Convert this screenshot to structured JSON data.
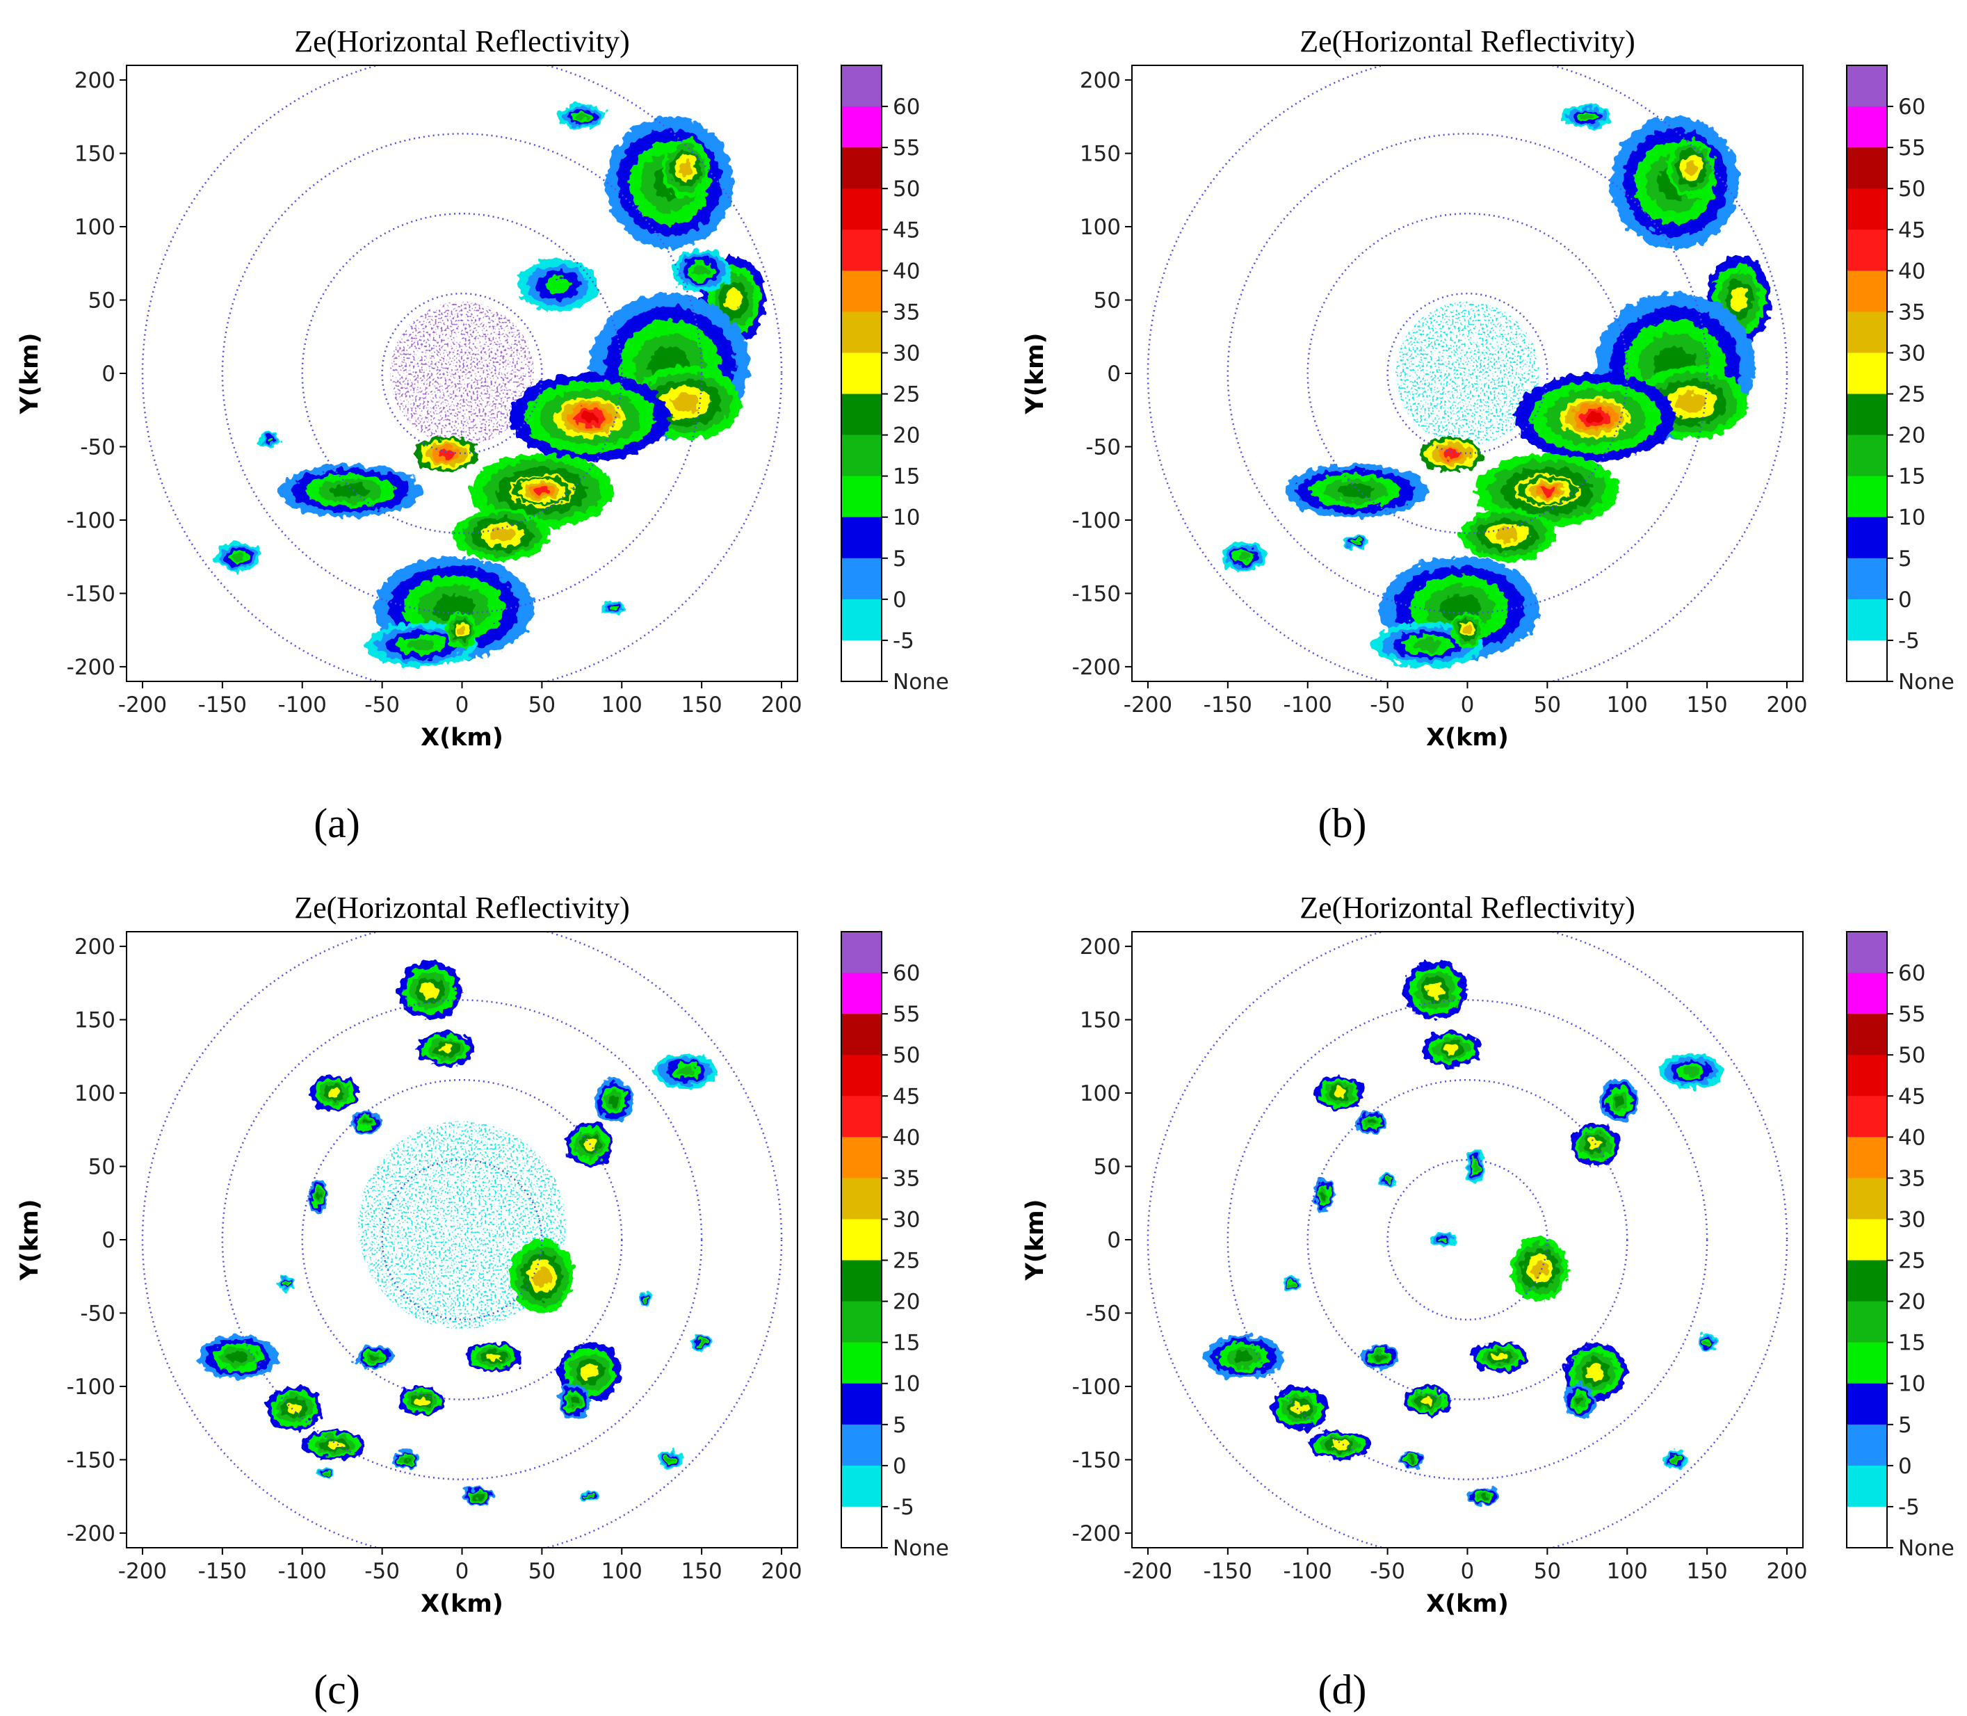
{
  "chart_data": [
    {
      "type": "heatmap",
      "caption": "(a)",
      "title": "Ze(Horizontal Reflectivity)",
      "xlabel": "X(km)",
      "ylabel": "Y(km)",
      "xlim": [
        -210,
        210
      ],
      "ylim": [
        -210,
        210
      ],
      "xticks": [
        -200,
        -150,
        -100,
        -50,
        0,
        50,
        100,
        150,
        200
      ],
      "yticks": [
        200,
        150,
        100,
        50,
        0,
        -50,
        -100,
        -150,
        -200
      ],
      "range_rings_km": [
        50,
        100,
        150,
        200
      ],
      "echo_cells": [
        {
          "x": 130,
          "y": 130,
          "rx": 40,
          "ry": 45,
          "level": 20
        },
        {
          "x": 140,
          "y": 140,
          "rx": 15,
          "ry": 20,
          "level": 30
        },
        {
          "x": 75,
          "y": 175,
          "rx": 15,
          "ry": 8,
          "level": 15
        },
        {
          "x": 170,
          "y": 50,
          "rx": 20,
          "ry": 30,
          "level": 25
        },
        {
          "x": 150,
          "y": 70,
          "rx": 18,
          "ry": 15,
          "level": 15
        },
        {
          "x": 130,
          "y": 5,
          "rx": 50,
          "ry": 50,
          "level": 20
        },
        {
          "x": 140,
          "y": -20,
          "rx": 35,
          "ry": 25,
          "level": 30
        },
        {
          "x": 80,
          "y": -30,
          "rx": 50,
          "ry": 30,
          "level": 25
        },
        {
          "x": 80,
          "y": -30,
          "rx": 22,
          "ry": 14,
          "level": 45
        },
        {
          "x": 50,
          "y": -80,
          "rx": 45,
          "ry": 25,
          "level": 30
        },
        {
          "x": 50,
          "y": -80,
          "rx": 18,
          "ry": 10,
          "level": 40
        },
        {
          "x": 25,
          "y": -110,
          "rx": 30,
          "ry": 18,
          "level": 30
        },
        {
          "x": -5,
          "y": -160,
          "rx": 50,
          "ry": 35,
          "level": 20
        },
        {
          "x": -25,
          "y": -185,
          "rx": 35,
          "ry": 15,
          "level": 15
        },
        {
          "x": 0,
          "y": -175,
          "rx": 10,
          "ry": 12,
          "level": 30
        },
        {
          "x": -70,
          "y": -80,
          "rx": 45,
          "ry": 18,
          "level": 20
        },
        {
          "x": -10,
          "y": -55,
          "rx": 20,
          "ry": 12,
          "level": 40
        },
        {
          "x": -140,
          "y": -125,
          "rx": 14,
          "ry": 10,
          "level": 15
        },
        {
          "x": 60,
          "y": 60,
          "rx": 25,
          "ry": 18,
          "level": 10
        },
        {
          "x": -120,
          "y": -45,
          "rx": 6,
          "ry": 6,
          "level": 10
        },
        {
          "x": 95,
          "y": -160,
          "rx": 8,
          "ry": 5,
          "level": 10
        }
      ],
      "clutter": {
        "x": 0,
        "y": 0,
        "r": 45,
        "level": 60
      }
    },
    {
      "type": "heatmap",
      "caption": "(b)",
      "title": "Ze(Horizontal Reflectivity)",
      "xlabel": "X(km)",
      "ylabel": "Y(km)",
      "xlim": [
        -210,
        210
      ],
      "ylim": [
        -210,
        210
      ],
      "xticks": [
        -200,
        -150,
        -100,
        -50,
        0,
        50,
        100,
        150,
        200
      ],
      "yticks": [
        200,
        150,
        100,
        50,
        0,
        -50,
        -100,
        -150,
        -200
      ],
      "range_rings_km": [
        50,
        100,
        150,
        200
      ],
      "echo_cells": [
        {
          "x": 130,
          "y": 130,
          "rx": 40,
          "ry": 45,
          "level": 20
        },
        {
          "x": 140,
          "y": 140,
          "rx": 15,
          "ry": 20,
          "level": 30
        },
        {
          "x": 75,
          "y": 175,
          "rx": 15,
          "ry": 8,
          "level": 15
        },
        {
          "x": 170,
          "y": 50,
          "rx": 20,
          "ry": 30,
          "level": 25
        },
        {
          "x": 130,
          "y": 5,
          "rx": 50,
          "ry": 50,
          "level": 20
        },
        {
          "x": 140,
          "y": -20,
          "rx": 35,
          "ry": 25,
          "level": 30
        },
        {
          "x": 80,
          "y": -30,
          "rx": 50,
          "ry": 30,
          "level": 25
        },
        {
          "x": 80,
          "y": -30,
          "rx": 22,
          "ry": 14,
          "level": 45
        },
        {
          "x": 50,
          "y": -80,
          "rx": 45,
          "ry": 25,
          "level": 30
        },
        {
          "x": 50,
          "y": -80,
          "rx": 18,
          "ry": 10,
          "level": 40
        },
        {
          "x": 25,
          "y": -110,
          "rx": 30,
          "ry": 18,
          "level": 30
        },
        {
          "x": -5,
          "y": -160,
          "rx": 50,
          "ry": 35,
          "level": 20
        },
        {
          "x": -25,
          "y": -185,
          "rx": 35,
          "ry": 15,
          "level": 15
        },
        {
          "x": 0,
          "y": -175,
          "rx": 10,
          "ry": 12,
          "level": 30
        },
        {
          "x": -70,
          "y": -80,
          "rx": 45,
          "ry": 18,
          "level": 20
        },
        {
          "x": -10,
          "y": -55,
          "rx": 20,
          "ry": 12,
          "level": 40
        },
        {
          "x": -140,
          "y": -125,
          "rx": 14,
          "ry": 10,
          "level": 15
        },
        {
          "x": -70,
          "y": -115,
          "rx": 8,
          "ry": 5,
          "level": 15
        }
      ],
      "clutter": {
        "x": 0,
        "y": 0,
        "r": 45,
        "level": -5
      }
    },
    {
      "type": "heatmap",
      "caption": "(c)",
      "title": "Ze(Horizontal Reflectivity)",
      "xlabel": "X(km)",
      "ylabel": "Y(km)",
      "xlim": [
        -210,
        210
      ],
      "ylim": [
        -210,
        210
      ],
      "xticks": [
        -200,
        -150,
        -100,
        -50,
        0,
        50,
        100,
        150,
        200
      ],
      "yticks": [
        200,
        150,
        100,
        50,
        0,
        -50,
        -100,
        -150,
        -200
      ],
      "range_rings_km": [
        50,
        100,
        150,
        200
      ],
      "echo_cells": [
        {
          "x": -20,
          "y": 170,
          "rx": 20,
          "ry": 20,
          "level": 25
        },
        {
          "x": -10,
          "y": 130,
          "rx": 18,
          "ry": 12,
          "level": 25
        },
        {
          "x": -80,
          "y": 100,
          "rx": 15,
          "ry": 12,
          "level": 25
        },
        {
          "x": -60,
          "y": 80,
          "rx": 10,
          "ry": 8,
          "level": 20
        },
        {
          "x": 140,
          "y": 115,
          "rx": 20,
          "ry": 12,
          "level": 15
        },
        {
          "x": 95,
          "y": 95,
          "rx": 12,
          "ry": 15,
          "level": 20
        },
        {
          "x": 80,
          "y": 65,
          "rx": 15,
          "ry": 15,
          "level": 25
        },
        {
          "x": 50,
          "y": -25,
          "rx": 20,
          "ry": 25,
          "level": 30
        },
        {
          "x": -140,
          "y": -80,
          "rx": 25,
          "ry": 15,
          "level": 20
        },
        {
          "x": -105,
          "y": -115,
          "rx": 18,
          "ry": 15,
          "level": 25
        },
        {
          "x": -80,
          "y": -140,
          "rx": 20,
          "ry": 10,
          "level": 25
        },
        {
          "x": -55,
          "y": -80,
          "rx": 12,
          "ry": 8,
          "level": 20
        },
        {
          "x": -25,
          "y": -110,
          "rx": 15,
          "ry": 10,
          "level": 25
        },
        {
          "x": 20,
          "y": -80,
          "rx": 18,
          "ry": 10,
          "level": 25
        },
        {
          "x": 80,
          "y": -90,
          "rx": 20,
          "ry": 20,
          "level": 25
        },
        {
          "x": 70,
          "y": -110,
          "rx": 10,
          "ry": 12,
          "level": 20
        },
        {
          "x": -90,
          "y": 30,
          "rx": 6,
          "ry": 12,
          "level": 20
        },
        {
          "x": 130,
          "y": -150,
          "rx": 8,
          "ry": 6,
          "level": 15
        },
        {
          "x": 10,
          "y": -175,
          "rx": 10,
          "ry": 6,
          "level": 20
        },
        {
          "x": 150,
          "y": -70,
          "rx": 6,
          "ry": 6,
          "level": 15
        },
        {
          "x": 115,
          "y": -40,
          "rx": 5,
          "ry": 5,
          "level": 15
        },
        {
          "x": -35,
          "y": -150,
          "rx": 8,
          "ry": 6,
          "level": 20
        },
        {
          "x": 80,
          "y": -175,
          "rx": 6,
          "ry": 4,
          "level": 15
        },
        {
          "x": -110,
          "y": -30,
          "rx": 5,
          "ry": 5,
          "level": 15
        },
        {
          "x": -85,
          "y": -160,
          "rx": 5,
          "ry": 4,
          "level": 15
        }
      ],
      "clutter": {
        "x": 0,
        "y": 10,
        "r": 65,
        "level": -5
      }
    },
    {
      "type": "heatmap",
      "caption": "(d)",
      "title": "Ze(Horizontal Reflectivity)",
      "xlabel": "X(km)",
      "ylabel": "Y(km)",
      "xlim": [
        -210,
        210
      ],
      "ylim": [
        -210,
        210
      ],
      "xticks": [
        -200,
        -150,
        -100,
        -50,
        0,
        50,
        100,
        150,
        200
      ],
      "yticks": [
        200,
        150,
        100,
        50,
        0,
        -50,
        -100,
        -150,
        -200
      ],
      "range_rings_km": [
        50,
        100,
        150,
        200
      ],
      "echo_cells": [
        {
          "x": -20,
          "y": 170,
          "rx": 20,
          "ry": 20,
          "level": 25
        },
        {
          "x": -10,
          "y": 130,
          "rx": 18,
          "ry": 12,
          "level": 25
        },
        {
          "x": -80,
          "y": 100,
          "rx": 15,
          "ry": 12,
          "level": 25
        },
        {
          "x": -60,
          "y": 80,
          "rx": 10,
          "ry": 8,
          "level": 20
        },
        {
          "x": 140,
          "y": 115,
          "rx": 20,
          "ry": 12,
          "level": 15
        },
        {
          "x": 95,
          "y": 95,
          "rx": 12,
          "ry": 15,
          "level": 20
        },
        {
          "x": 80,
          "y": 65,
          "rx": 15,
          "ry": 15,
          "level": 25
        },
        {
          "x": 45,
          "y": -20,
          "rx": 18,
          "ry": 22,
          "level": 30
        },
        {
          "x": -140,
          "y": -80,
          "rx": 25,
          "ry": 15,
          "level": 20
        },
        {
          "x": -105,
          "y": -115,
          "rx": 18,
          "ry": 15,
          "level": 25
        },
        {
          "x": -80,
          "y": -140,
          "rx": 20,
          "ry": 10,
          "level": 25
        },
        {
          "x": -55,
          "y": -80,
          "rx": 12,
          "ry": 8,
          "level": 20
        },
        {
          "x": -25,
          "y": -110,
          "rx": 15,
          "ry": 10,
          "level": 25
        },
        {
          "x": 20,
          "y": -80,
          "rx": 18,
          "ry": 10,
          "level": 25
        },
        {
          "x": 80,
          "y": -90,
          "rx": 20,
          "ry": 20,
          "level": 25
        },
        {
          "x": 70,
          "y": -110,
          "rx": 10,
          "ry": 12,
          "level": 20
        },
        {
          "x": -90,
          "y": 30,
          "rx": 6,
          "ry": 12,
          "level": 20
        },
        {
          "x": 130,
          "y": -150,
          "rx": 8,
          "ry": 6,
          "level": 15
        },
        {
          "x": 10,
          "y": -175,
          "rx": 10,
          "ry": 6,
          "level": 20
        },
        {
          "x": 150,
          "y": -70,
          "rx": 6,
          "ry": 6,
          "level": 15
        },
        {
          "x": -15,
          "y": 0,
          "rx": 8,
          "ry": 5,
          "level": 10
        },
        {
          "x": 5,
          "y": 50,
          "rx": 6,
          "ry": 12,
          "level": 15
        },
        {
          "x": -50,
          "y": 40,
          "rx": 5,
          "ry": 5,
          "level": 15
        },
        {
          "x": -110,
          "y": -30,
          "rx": 5,
          "ry": 5,
          "level": 15
        },
        {
          "x": -35,
          "y": -150,
          "rx": 8,
          "ry": 6,
          "level": 20
        }
      ],
      "clutter": null
    }
  ],
  "colorbar": {
    "labels": [
      "60",
      "55",
      "50",
      "45",
      "40",
      "35",
      "30",
      "25",
      "20",
      "15",
      "10",
      "5",
      "0",
      "-5",
      "None"
    ],
    "bins": [
      {
        "level": 60,
        "color": "#9a55cc"
      },
      {
        "level": 55,
        "color": "#ff00ff"
      },
      {
        "level": 50,
        "color": "#b30000"
      },
      {
        "level": 45,
        "color": "#e60000"
      },
      {
        "level": 40,
        "color": "#ff1a1a"
      },
      {
        "level": 35,
        "color": "#ff8c00"
      },
      {
        "level": 30,
        "color": "#e0b800"
      },
      {
        "level": 25,
        "color": "#ffff00"
      },
      {
        "level": 20,
        "color": "#008c00"
      },
      {
        "level": 15,
        "color": "#12b812"
      },
      {
        "level": 10,
        "color": "#00ee00"
      },
      {
        "level": 5,
        "color": "#0000e6"
      },
      {
        "level": 0,
        "color": "#1e90ff"
      },
      {
        "level": -5,
        "color": "#00e5e5"
      },
      {
        "level": null,
        "color": "#ffffff"
      }
    ]
  },
  "colors": {
    "ring": "#5050e0",
    "axis": "#000000"
  }
}
